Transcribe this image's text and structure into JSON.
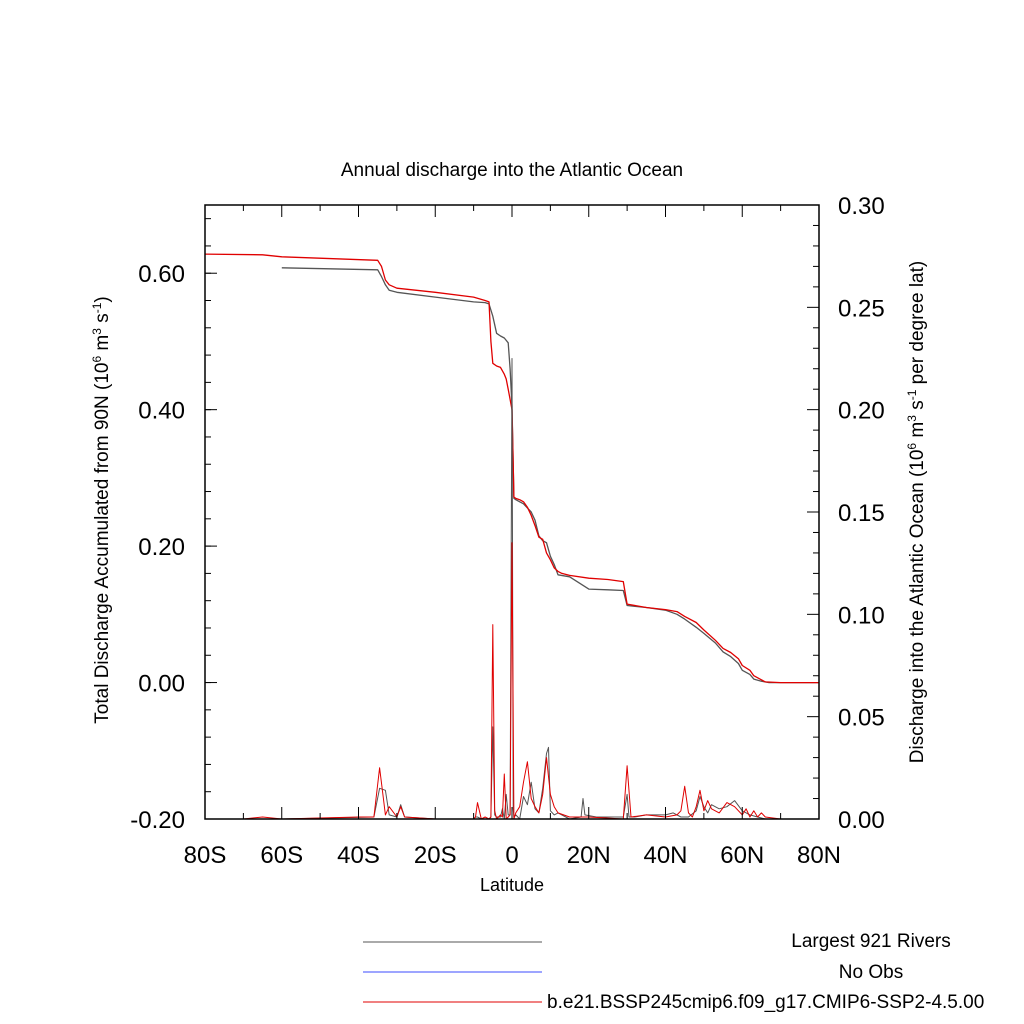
{
  "chart_data": {
    "type": "line",
    "title": "Annual discharge into the Atlantic Ocean",
    "xlabel": "Latitude",
    "ylabel_left": "Total Discharge Accumulated from 90N (10^6 m^3 s^-1)",
    "ylabel_left_parts": {
      "a": "Total Discharge Accumulated from 90N (10",
      "e1": "6",
      "b": " m",
      "e2": "3",
      "c": " s",
      "e3": "-1",
      "d": ")"
    },
    "ylabel_right_parts": {
      "a": "Discharge into the Atlantic Ocean (10",
      "e1": "6",
      "b": " m",
      "e2": "3",
      "c": " s",
      "e3": "-1",
      "d": " per degree lat)"
    },
    "xlim": [
      -80,
      80
    ],
    "ylim_left": [
      -0.2,
      0.7
    ],
    "ylim_right": [
      0,
      0.3
    ],
    "x_ticks": [
      {
        "value": -80,
        "label": "80S"
      },
      {
        "value": -60,
        "label": "60S"
      },
      {
        "value": -40,
        "label": "40S"
      },
      {
        "value": -20,
        "label": "20S"
      },
      {
        "value": 0,
        "label": "0"
      },
      {
        "value": 20,
        "label": "20N"
      },
      {
        "value": 40,
        "label": "40N"
      },
      {
        "value": 60,
        "label": "60N"
      },
      {
        "value": 80,
        "label": "80N"
      }
    ],
    "y_left_ticks": [
      {
        "value": -0.2,
        "label": "-0.20"
      },
      {
        "value": 0.0,
        "label": "0.00"
      },
      {
        "value": 0.2,
        "label": "0.20"
      },
      {
        "value": 0.4,
        "label": "0.40"
      },
      {
        "value": 0.6,
        "label": "0.60"
      }
    ],
    "y_right_ticks": [
      {
        "value": 0.0,
        "label": "0.00"
      },
      {
        "value": 0.05,
        "label": "0.05"
      },
      {
        "value": 0.1,
        "label": "0.10"
      },
      {
        "value": 0.15,
        "label": "0.15"
      },
      {
        "value": 0.2,
        "label": "0.20"
      },
      {
        "value": 0.25,
        "label": "0.25"
      },
      {
        "value": 0.3,
        "label": "0.30"
      }
    ],
    "grid": false,
    "legend_position": "bottom",
    "series": [
      {
        "name": "Largest 921 Rivers",
        "color": "#555555",
        "axis": "left",
        "x": [
          -60,
          -35,
          -34,
          -33,
          -32,
          -30,
          -20,
          -10,
          -7,
          -6,
          -5,
          -4,
          -3,
          -2,
          -1,
          -0.5,
          0,
          0.5,
          1,
          2,
          3,
          5,
          6,
          7,
          8,
          9,
          10,
          11,
          12,
          15,
          20,
          25,
          29,
          30,
          35,
          40,
          43,
          45,
          48,
          50,
          53,
          55,
          57,
          59,
          60,
          62,
          63,
          65,
          67,
          70,
          75,
          80
        ],
        "values": [
          0.608,
          0.605,
          0.595,
          0.583,
          0.575,
          0.572,
          0.565,
          0.558,
          0.557,
          0.555,
          0.537,
          0.512,
          0.508,
          0.505,
          0.498,
          0.46,
          0.405,
          0.27,
          0.268,
          0.265,
          0.262,
          0.25,
          0.238,
          0.215,
          0.208,
          0.205,
          0.185,
          0.173,
          0.158,
          0.155,
          0.137,
          0.136,
          0.135,
          0.113,
          0.11,
          0.106,
          0.1,
          0.093,
          0.081,
          0.072,
          0.058,
          0.045,
          0.038,
          0.028,
          0.018,
          0.012,
          0.005,
          0.002,
          0.0,
          0.0,
          0.0,
          0.0
        ]
      },
      {
        "name": "No Obs",
        "color": "#3b4bff",
        "axis": "left",
        "x": [],
        "values": []
      },
      {
        "name": "b.e21.BSSP245cmip6.f09_g17.CMIP6-SSP2-4.5.00",
        "color": "#e00000",
        "axis": "left",
        "x": [
          -80,
          -65,
          -60,
          -35,
          -34,
          -33,
          -32,
          -30,
          -20,
          -10,
          -7,
          -6,
          -5.5,
          -5,
          -4,
          -3,
          -2,
          -1.5,
          -1,
          -0.5,
          0,
          0.5,
          1,
          2,
          3,
          4,
          5,
          6,
          7,
          8,
          9,
          10,
          11,
          12,
          13,
          15,
          20,
          25,
          29,
          30,
          35,
          40,
          43,
          45,
          48,
          50,
          53,
          55,
          57,
          59,
          60,
          62,
          63,
          65,
          66,
          70,
          75,
          80
        ],
        "values": [
          0.628,
          0.627,
          0.624,
          0.619,
          0.61,
          0.59,
          0.583,
          0.578,
          0.572,
          0.565,
          0.56,
          0.558,
          0.5,
          0.468,
          0.464,
          0.462,
          0.452,
          0.445,
          0.43,
          0.415,
          0.4,
          0.272,
          0.27,
          0.268,
          0.265,
          0.257,
          0.245,
          0.23,
          0.213,
          0.21,
          0.19,
          0.18,
          0.168,
          0.163,
          0.16,
          0.157,
          0.153,
          0.151,
          0.148,
          0.115,
          0.11,
          0.107,
          0.104,
          0.097,
          0.088,
          0.077,
          0.062,
          0.05,
          0.044,
          0.035,
          0.025,
          0.018,
          0.01,
          0.004,
          0.001,
          0.0,
          0.0,
          0.0
        ]
      },
      {
        "name": "Largest 921 Rivers (per degree lat)",
        "color": "#555555",
        "axis": "right",
        "x": [
          -80,
          -60,
          -36,
          -34.5,
          -33,
          -32,
          -30,
          -29,
          -28,
          -20,
          -10,
          -9.5,
          -9,
          -8,
          -6,
          -5.5,
          -5,
          -4.5,
          -4,
          -3,
          -2.5,
          -2,
          -1.5,
          -1,
          -0.5,
          0,
          0.3,
          0.5,
          1,
          2,
          3,
          4,
          5,
          6,
          7,
          8,
          9,
          9.5,
          10,
          11,
          12,
          15,
          18,
          18.5,
          19,
          22,
          29,
          30,
          30.5,
          32,
          35,
          40,
          42,
          44,
          45,
          46,
          48,
          49,
          50,
          51,
          52,
          54,
          56,
          58,
          60,
          62,
          64,
          66,
          70,
          80
        ],
        "values": [
          0,
          0,
          0.001,
          0.015,
          0.014,
          0.002,
          0.001,
          0.007,
          0.001,
          0,
          0,
          0.001,
          0.001,
          0,
          0.0,
          0.001,
          0.045,
          0.002,
          0.001,
          0.001,
          0.005,
          0.0,
          0.012,
          0.002,
          0.002,
          0.225,
          0.005,
          0.001,
          0.002,
          0.0,
          0.011,
          0.007,
          0.018,
          0.005,
          0.003,
          0.015,
          0.032,
          0.035,
          0.004,
          0.002,
          0.003,
          0.0,
          0.001,
          0.01,
          0.002,
          0.001,
          0.001,
          0.012,
          0.001,
          0.001,
          0.002,
          0.002,
          0.003,
          0.001,
          0.001,
          0.001,
          0.004,
          0.011,
          0.006,
          0.003,
          0.007,
          0.005,
          0.006,
          0.009,
          0.004,
          0.002,
          0.001,
          0.0,
          0,
          0
        ]
      },
      {
        "name": "b.e21.BSSP245cmip6.f09_g17.CMIP6-SSP2-4.5.00 (per degree lat)",
        "color": "#e00000",
        "axis": "right",
        "x": [
          -80,
          -70,
          -65,
          -60,
          -40,
          -36,
          -34.5,
          -33.5,
          -33,
          -32,
          -30,
          -29,
          -28,
          -20,
          -10,
          -9.5,
          -9,
          -8,
          -7,
          -6,
          -5.5,
          -5,
          -4.5,
          -4,
          -3,
          -2.5,
          -2,
          -1.5,
          -1,
          -0.5,
          0,
          0.5,
          1,
          2,
          3,
          4,
          5,
          6,
          7,
          8,
          9,
          10,
          11,
          12,
          15,
          20,
          29,
          30,
          31,
          35,
          40,
          43,
          44,
          45,
          46,
          47,
          48,
          49,
          50,
          51,
          52,
          54,
          56,
          58,
          60,
          61,
          62,
          63,
          64,
          65,
          66,
          70,
          80
        ],
        "values": [
          0,
          0,
          0.001,
          0,
          0.001,
          0.001,
          0.025,
          0.01,
          0.002,
          0.006,
          0.001,
          0.006,
          0.001,
          0,
          0.0,
          0.001,
          0.008,
          0.0,
          0.001,
          0.0,
          0.001,
          0.095,
          0.004,
          0.0,
          0.002,
          0.001,
          0.022,
          0.0,
          0.001,
          0.002,
          0.135,
          0.0,
          0.003,
          0.006,
          0.018,
          0.028,
          0.01,
          0.006,
          0.003,
          0.012,
          0.03,
          0.012,
          0.006,
          0.003,
          0.001,
          0.001,
          0.0,
          0.026,
          0.001,
          0.002,
          0.001,
          0.002,
          0.004,
          0.016,
          0.003,
          0.001,
          0.006,
          0.014,
          0.004,
          0.009,
          0.005,
          0.003,
          0.008,
          0.006,
          0.002,
          0.005,
          0.001,
          0.004,
          0.001,
          0.003,
          0.001,
          0,
          0
        ]
      }
    ]
  }
}
